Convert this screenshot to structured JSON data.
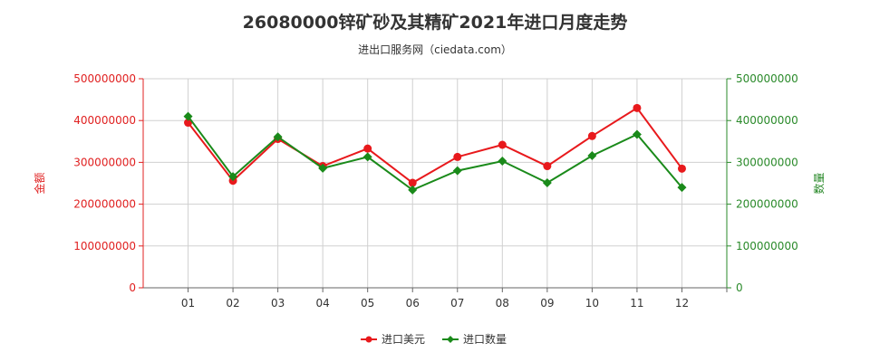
{
  "header": {
    "title": "26080000锌矿砂及其精矿2021年进口月度走势",
    "subtitle": "进出口服务网（ciedata.com）"
  },
  "colors": {
    "amount": "#e8191c",
    "quantity": "#1a8a1a",
    "grid": "#d0d0d0",
    "axis_left": "#e02020",
    "axis_right": "#2a8a2a"
  },
  "chart_data": {
    "type": "line",
    "title": "26080000锌矿砂及其精矿2021年进口月度走势",
    "subtitle": "进出口服务网（ciedata.com）",
    "categories": [
      "01",
      "02",
      "03",
      "04",
      "05",
      "06",
      "07",
      "08",
      "09",
      "10",
      "11",
      "12"
    ],
    "ylabel_left": "金额",
    "ylabel_right": "数量",
    "ylim_left": [
      0,
      500000000
    ],
    "ylim_right": [
      0,
      500000000
    ],
    "yticks_left": [
      "0",
      "100000000",
      "200000000",
      "300000000",
      "400000000",
      "500000000"
    ],
    "yticks_right": [
      "0",
      "100000000",
      "200000000",
      "300000000",
      "400000000",
      "500000000"
    ],
    "grid": true,
    "legend_position": "bottom-center",
    "series": [
      {
        "name": "进口美元",
        "axis": "left",
        "marker": "circle",
        "values": [
          395000000,
          256000000,
          356000000,
          291000000,
          333000000,
          251000000,
          313000000,
          342000000,
          291000000,
          363000000,
          430000000,
          285000000
        ]
      },
      {
        "name": "进口数量",
        "axis": "right",
        "marker": "diamond",
        "values": [
          410000000,
          266000000,
          361000000,
          286000000,
          313000000,
          234000000,
          280000000,
          303000000,
          251000000,
          316000000,
          367000000,
          240000000
        ]
      }
    ]
  }
}
